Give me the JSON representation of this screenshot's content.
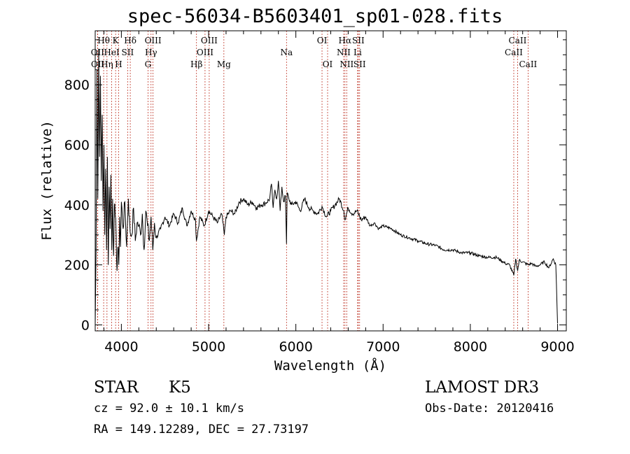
{
  "chart_data": {
    "type": "line",
    "title": "spec-56034-B5603401_sp01-028.fits",
    "xlabel": "Wavelength (Å)",
    "ylabel": "Flux (relative)",
    "xlim": [
      3700,
      9100
    ],
    "ylim": [
      -20,
      980
    ],
    "x_ticks": [
      4000,
      5000,
      6000,
      7000,
      8000,
      9000
    ],
    "x_tick_labels": [
      "4000",
      "5000",
      "6000",
      "7000",
      "8000",
      "9000"
    ],
    "y_ticks": [
      0,
      200,
      400,
      600,
      800
    ],
    "y_tick_labels": [
      "0",
      "200",
      "400",
      "600",
      "800"
    ],
    "series": [
      {
        "name": "flux",
        "x": [
          3700,
          3710,
          3720,
          3730,
          3740,
          3750,
          3760,
          3770,
          3780,
          3790,
          3800,
          3810,
          3820,
          3830,
          3840,
          3850,
          3860,
          3870,
          3880,
          3890,
          3900,
          3910,
          3920,
          3930,
          3940,
          3950,
          3960,
          3970,
          3980,
          3990,
          4000,
          4020,
          4040,
          4060,
          4080,
          4100,
          4120,
          4140,
          4160,
          4180,
          4200,
          4220,
          4240,
          4260,
          4280,
          4300,
          4320,
          4340,
          4360,
          4380,
          4400,
          4450,
          4500,
          4550,
          4600,
          4650,
          4700,
          4750,
          4800,
          4850,
          4860,
          4900,
          4950,
          5000,
          5050,
          5100,
          5150,
          5180,
          5200,
          5250,
          5300,
          5350,
          5400,
          5450,
          5500,
          5550,
          5600,
          5650,
          5700,
          5720,
          5740,
          5760,
          5780,
          5800,
          5820,
          5840,
          5860,
          5880,
          5893,
          5900,
          5920,
          5950,
          6000,
          6050,
          6100,
          6150,
          6200,
          6250,
          6300,
          6350,
          6400,
          6450,
          6500,
          6550,
          6563,
          6600,
          6650,
          6700,
          6750,
          6800,
          6850,
          6900,
          6950,
          7000,
          7100,
          7200,
          7300,
          7400,
          7500,
          7600,
          7700,
          7800,
          7900,
          8000,
          8100,
          8200,
          8300,
          8400,
          8450,
          8498,
          8520,
          8542,
          8560,
          8600,
          8662,
          8700,
          8750,
          8800,
          8850,
          8900,
          8950,
          8980,
          9000
        ],
        "y": [
          0,
          240,
          850,
          420,
          920,
          560,
          830,
          480,
          700,
          380,
          600,
          300,
          520,
          250,
          560,
          200,
          460,
          320,
          500,
          250,
          420,
          230,
          400,
          360,
          300,
          180,
          260,
          200,
          360,
          260,
          410,
          320,
          410,
          260,
          420,
          310,
          300,
          390,
          280,
          340,
          330,
          300,
          370,
          250,
          380,
          330,
          280,
          360,
          250,
          340,
          290,
          320,
          360,
          330,
          370,
          340,
          390,
          330,
          380,
          350,
          280,
          360,
          330,
          380,
          360,
          340,
          370,
          300,
          360,
          380,
          370,
          410,
          420,
          400,
          410,
          390,
          400,
          405,
          420,
          470,
          390,
          450,
          420,
          480,
          380,
          460,
          410,
          430,
          270,
          440,
          420,
          400,
          410,
          380,
          420,
          390,
          380,
          370,
          395,
          360,
          380,
          400,
          420,
          380,
          350,
          390,
          370,
          380,
          350,
          360,
          330,
          340,
          320,
          330,
          320,
          300,
          290,
          280,
          270,
          265,
          250,
          250,
          240,
          240,
          230,
          225,
          225,
          205,
          200,
          165,
          220,
          180,
          215,
          210,
          200,
          205,
          195,
          200,
          210,
          190,
          220,
          200,
          5
        ],
        "color": "#000000"
      }
    ],
    "lines": [
      {
        "label": "Hθ",
        "x": 3797,
        "row": 1
      },
      {
        "label": "OII",
        "x": 3727,
        "row": 2
      },
      {
        "label": "OII",
        "x": 3729,
        "row": 3
      },
      {
        "label": "K",
        "x": 3934,
        "row": 1
      },
      {
        "label": "HeI",
        "x": 3889,
        "row": 2
      },
      {
        "label": "Hη",
        "x": 3835,
        "row": 3
      },
      {
        "label": "Hδ",
        "x": 4102,
        "row": 1
      },
      {
        "label": "SII",
        "x": 4072,
        "row": 2
      },
      {
        "label": "H",
        "x": 3969,
        "row": 3
      },
      {
        "label": "OIII",
        "x": 4363,
        "row": 1
      },
      {
        "label": "Hγ",
        "x": 4340,
        "row": 2
      },
      {
        "label": "G",
        "x": 4305,
        "row": 3
      },
      {
        "label": "OIII",
        "x": 5007,
        "row": 1
      },
      {
        "label": "OIII",
        "x": 4959,
        "row": 2
      },
      {
        "label": "Hβ",
        "x": 4861,
        "row": 3
      },
      {
        "label": "Mg",
        "x": 5175,
        "row": 3
      },
      {
        "label": "Na",
        "x": 5893,
        "row": 2
      },
      {
        "label": "OI",
        "x": 6300,
        "row": 1
      },
      {
        "label": "OI",
        "x": 6364,
        "row": 3
      },
      {
        "label": "Hα",
        "x": 6563,
        "row": 1
      },
      {
        "label": "SII",
        "x": 6716,
        "row": 1
      },
      {
        "label": "NII",
        "x": 6548,
        "row": 2
      },
      {
        "label": "Li",
        "x": 6708,
        "row": 2
      },
      {
        "label": "NII",
        "x": 6583,
        "row": 3
      },
      {
        "label": "SII",
        "x": 6731,
        "row": 3
      },
      {
        "label": "CaII",
        "x": 8542,
        "row": 1
      },
      {
        "label": "CaII",
        "x": 8498,
        "row": 2
      },
      {
        "label": "CaII",
        "x": 8662,
        "row": 3
      }
    ],
    "line_color": "#c0392b",
    "curve_color": "#000000"
  },
  "footer": {
    "object_class": "STAR",
    "subclass": "K5",
    "cz": "cz = 92.0 ± 10.1 km/s",
    "coords": "RA = 149.12289, DEC =  27.73197",
    "survey": "LAMOST DR3",
    "obs_date": "Obs-Date: 20120416"
  }
}
